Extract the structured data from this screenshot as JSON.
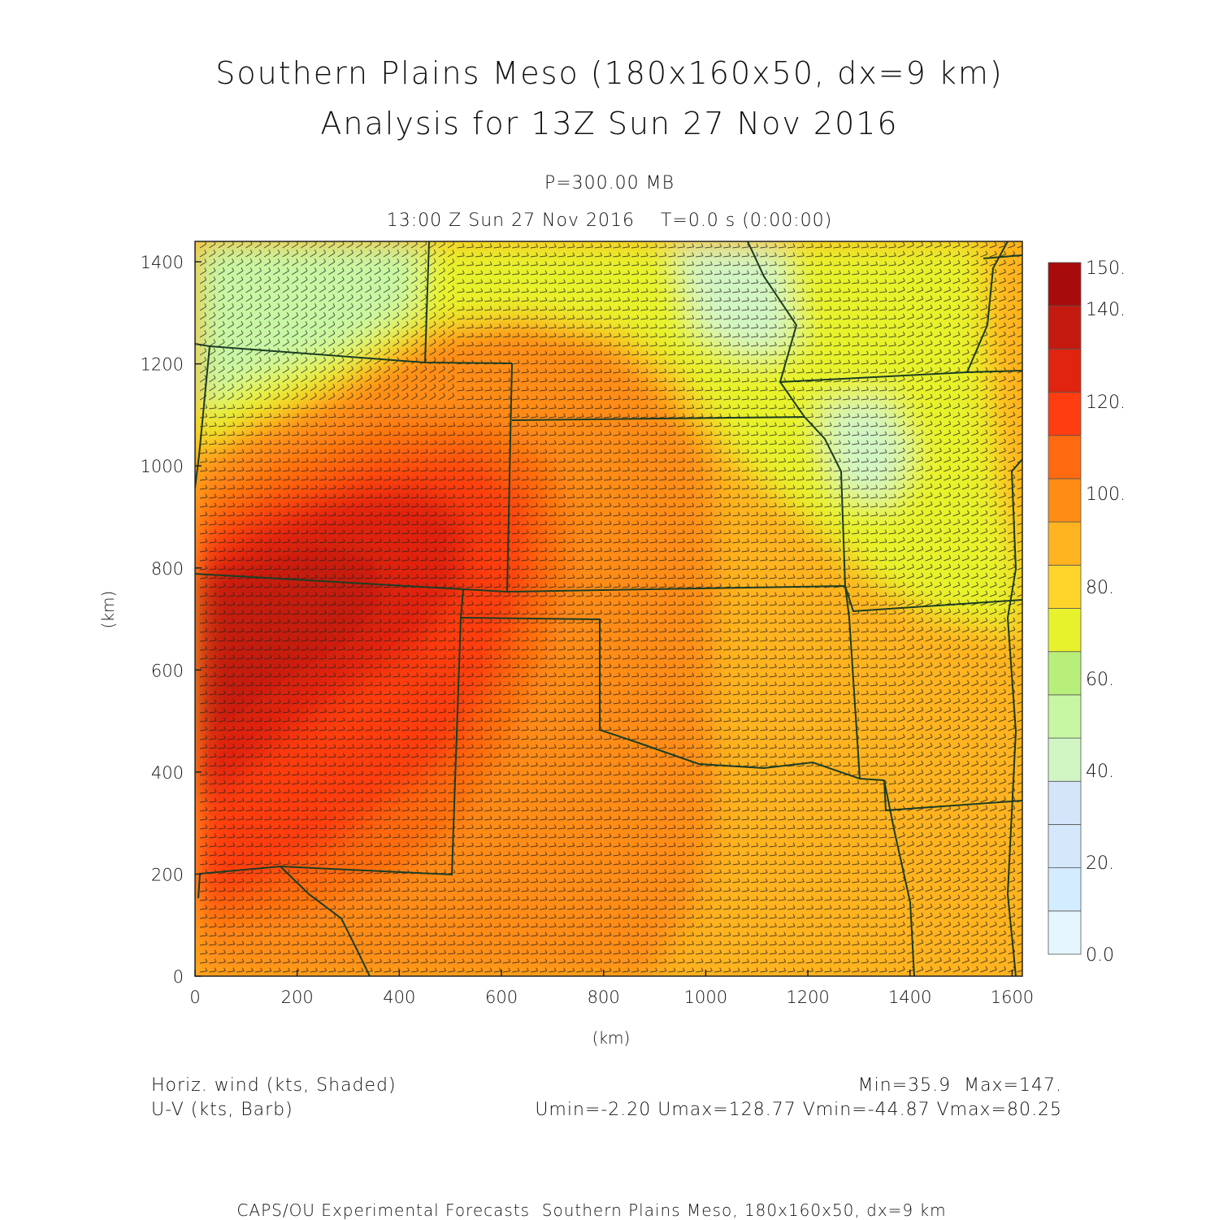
{
  "header": {
    "title_line1": "Southern Plains Meso (180x160x50, dx=9 km)",
    "title_line2": "Analysis for 13Z Sun 27 Nov 2016",
    "level": "P=300.00 MB",
    "valid_time": "13:00 Z Sun 27 Nov 2016    T=0.0 s (0:00:00)"
  },
  "axes": {
    "x_label": "(km)",
    "y_label": "(km)",
    "x_ticks": [
      0,
      200,
      400,
      600,
      800,
      1000,
      1200,
      1400,
      1600
    ],
    "y_ticks": [
      0,
      200,
      400,
      600,
      800,
      1000,
      1200,
      1400
    ],
    "x_range": [
      0,
      1620
    ],
    "y_range": [
      0,
      1440
    ]
  },
  "colorbar": {
    "labels": [
      "0.0",
      "20.",
      "40.",
      "60.",
      "80.",
      "100.",
      "120.",
      "140.",
      "150."
    ],
    "colors": [
      "#e6f6ff",
      "#d3ecff",
      "#d5e8fb",
      "#d4e4f9",
      "#d2f5c4",
      "#c8f7a4",
      "#b8ef7a",
      "#e8f22c",
      "#ffd42a",
      "#ffb31f",
      "#ff8c15",
      "#ff6a10",
      "#ff3d10",
      "#e02410",
      "#c41a10",
      "#a80b0b"
    ]
  },
  "legend": {
    "shaded": "Horiz. wind (kts, Shaded)",
    "barb": "U-V (kts, Barb)",
    "minmax": "Min=35.9  Max=147.",
    "uv_stats": "Umin=-2.20 Umax=128.77 Vmin=-44.87 Vmax=80.25"
  },
  "footer": "CAPS/OU Experimental Forecasts  Southern Plains Meso, 180x160x50, dx=9 km"
}
